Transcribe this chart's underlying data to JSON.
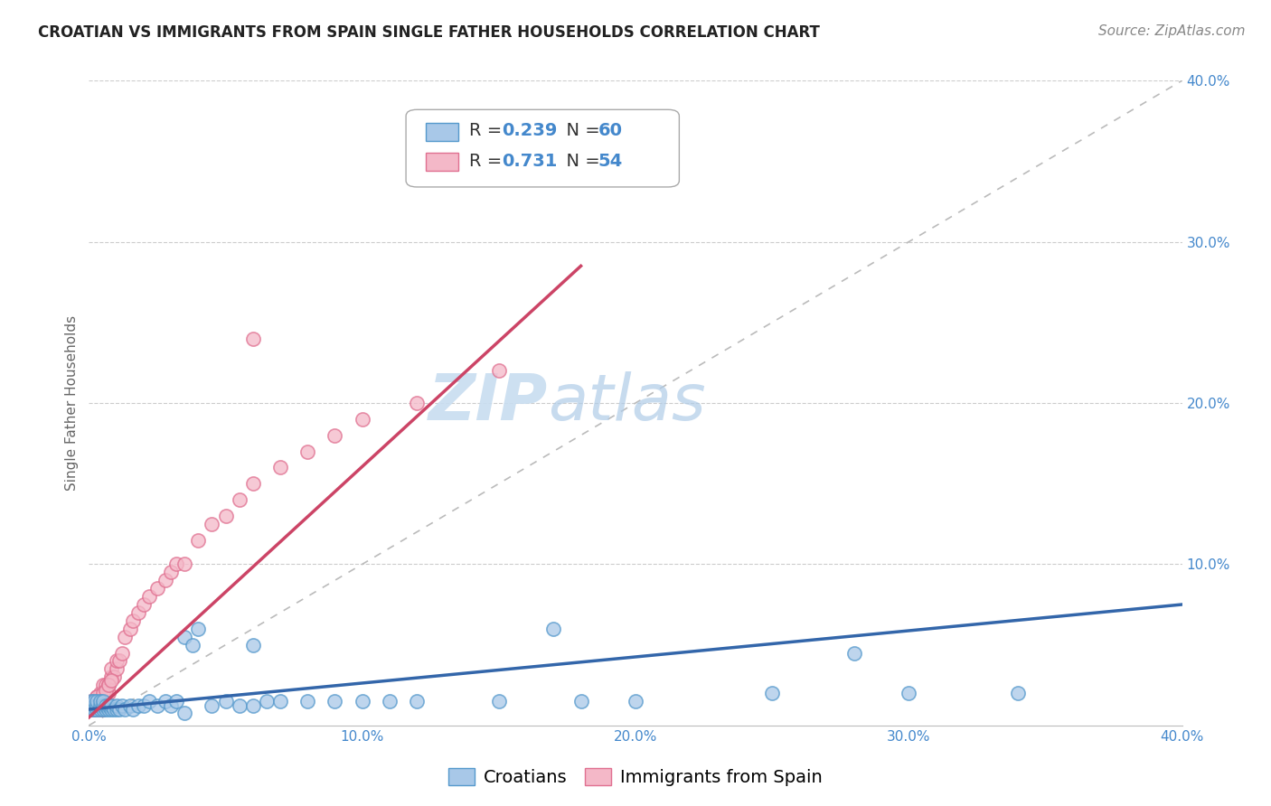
{
  "title": "CROATIAN VS IMMIGRANTS FROM SPAIN SINGLE FATHER HOUSEHOLDS CORRELATION CHART",
  "source": "Source: ZipAtlas.com",
  "ylabel": "Single Father Households",
  "xlim": [
    0.0,
    0.4
  ],
  "ylim": [
    0.0,
    0.4
  ],
  "xticks": [
    0.0,
    0.1,
    0.2,
    0.3,
    0.4
  ],
  "yticks": [
    0.1,
    0.2,
    0.3,
    0.4
  ],
  "xtick_labels": [
    "0.0%",
    "10.0%",
    "20.0%",
    "30.0%",
    "40.0%"
  ],
  "ytick_labels": [
    "10.0%",
    "20.0%",
    "30.0%",
    "40.0%"
  ],
  "blue_color": "#a8c8e8",
  "pink_color": "#f4b8c8",
  "blue_edge": "#5599cc",
  "pink_edge": "#e07090",
  "trend_blue": "#3366aa",
  "trend_pink": "#cc4466",
  "ref_line_color": "#bbbbbb",
  "text_blue": "#4488cc",
  "text_orange": "#cc6600",
  "watermark_zip": "ZIP",
  "watermark_atlas": "atlas",
  "background_color": "#ffffff",
  "grid_color": "#cccccc",
  "blue_x": [
    0.001,
    0.001,
    0.001,
    0.002,
    0.002,
    0.002,
    0.003,
    0.003,
    0.003,
    0.004,
    0.004,
    0.004,
    0.005,
    0.005,
    0.005,
    0.006,
    0.006,
    0.007,
    0.007,
    0.008,
    0.008,
    0.009,
    0.01,
    0.01,
    0.011,
    0.012,
    0.013,
    0.015,
    0.016,
    0.018,
    0.02,
    0.022,
    0.025,
    0.028,
    0.03,
    0.032,
    0.035,
    0.038,
    0.04,
    0.045,
    0.05,
    0.055,
    0.06,
    0.065,
    0.07,
    0.08,
    0.09,
    0.1,
    0.12,
    0.15,
    0.18,
    0.2,
    0.25,
    0.3,
    0.34,
    0.06,
    0.11,
    0.17,
    0.28,
    0.035
  ],
  "blue_y": [
    0.01,
    0.012,
    0.015,
    0.01,
    0.012,
    0.015,
    0.01,
    0.012,
    0.015,
    0.01,
    0.012,
    0.015,
    0.01,
    0.012,
    0.015,
    0.01,
    0.012,
    0.01,
    0.012,
    0.01,
    0.012,
    0.01,
    0.01,
    0.012,
    0.01,
    0.012,
    0.01,
    0.012,
    0.01,
    0.012,
    0.012,
    0.015,
    0.012,
    0.015,
    0.012,
    0.015,
    0.055,
    0.05,
    0.06,
    0.012,
    0.015,
    0.012,
    0.012,
    0.015,
    0.015,
    0.015,
    0.015,
    0.015,
    0.015,
    0.015,
    0.015,
    0.015,
    0.02,
    0.02,
    0.02,
    0.05,
    0.015,
    0.06,
    0.045,
    0.008
  ],
  "pink_x": [
    0.001,
    0.001,
    0.001,
    0.002,
    0.002,
    0.002,
    0.003,
    0.003,
    0.003,
    0.004,
    0.004,
    0.004,
    0.005,
    0.005,
    0.006,
    0.006,
    0.007,
    0.007,
    0.008,
    0.008,
    0.009,
    0.01,
    0.01,
    0.011,
    0.012,
    0.013,
    0.015,
    0.016,
    0.018,
    0.02,
    0.022,
    0.025,
    0.028,
    0.03,
    0.032,
    0.035,
    0.04,
    0.045,
    0.05,
    0.055,
    0.06,
    0.07,
    0.08,
    0.09,
    0.1,
    0.12,
    0.15,
    0.004,
    0.003,
    0.005,
    0.006,
    0.007,
    0.008,
    0.06
  ],
  "pink_y": [
    0.01,
    0.012,
    0.015,
    0.01,
    0.012,
    0.015,
    0.01,
    0.012,
    0.018,
    0.01,
    0.012,
    0.02,
    0.01,
    0.025,
    0.015,
    0.025,
    0.02,
    0.025,
    0.03,
    0.035,
    0.03,
    0.035,
    0.04,
    0.04,
    0.045,
    0.055,
    0.06,
    0.065,
    0.07,
    0.075,
    0.08,
    0.085,
    0.09,
    0.095,
    0.1,
    0.1,
    0.115,
    0.125,
    0.13,
    0.14,
    0.15,
    0.16,
    0.17,
    0.18,
    0.19,
    0.2,
    0.22,
    0.015,
    0.018,
    0.02,
    0.022,
    0.025,
    0.028,
    0.24
  ],
  "blue_trend_x": [
    0.0,
    0.4
  ],
  "blue_trend_y": [
    0.01,
    0.075
  ],
  "pink_trend_x": [
    0.0,
    0.18
  ],
  "pink_trend_y": [
    0.005,
    0.285
  ],
  "title_fontsize": 12,
  "axis_label_fontsize": 11,
  "tick_fontsize": 11,
  "legend_fontsize": 14,
  "source_fontsize": 11,
  "marker_size": 120
}
